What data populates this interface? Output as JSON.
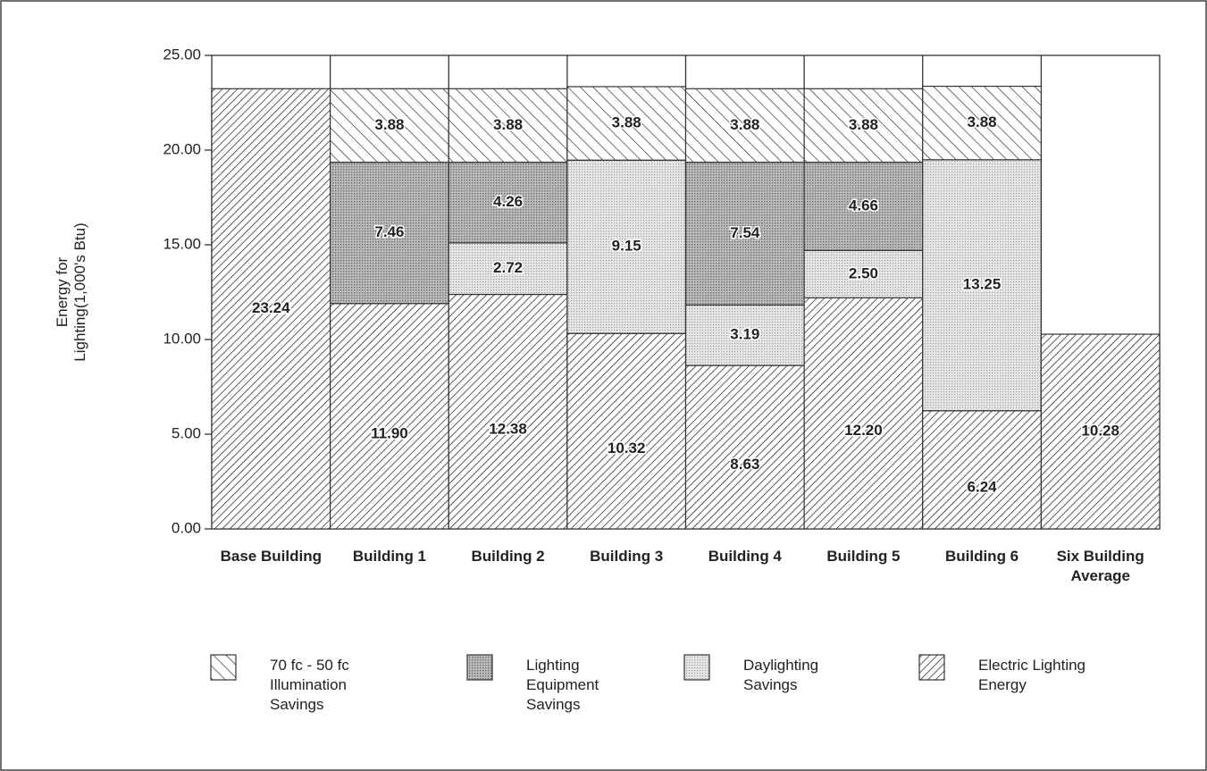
{
  "chart_data": {
    "type": "stacked-bar",
    "ylabel": "Energy for Lighting(1,000's Btu)",
    "categories": [
      "Base Building",
      "Building 1",
      "Building 2",
      "Building 3",
      "Building 4",
      "Building 5",
      "Building 6",
      "Six Building Average"
    ],
    "series": [
      {
        "name": "70 fc - 50 fc Illumination Savings",
        "color": "#333333",
        "pattern": "hatch-back",
        "values": [
          null,
          3.88,
          3.88,
          3.88,
          3.88,
          3.88,
          3.88,
          null
        ]
      },
      {
        "name": "Lighting Equipment Savings",
        "color": "#8a8a8a",
        "pattern": "dots-dark",
        "values": [
          null,
          7.46,
          4.26,
          null,
          7.54,
          4.66,
          null,
          null
        ]
      },
      {
        "name": "Daylighting Savings",
        "color": "#c4c4c4",
        "pattern": "dots-light",
        "values": [
          null,
          null,
          2.72,
          9.15,
          3.19,
          2.5,
          13.25,
          null
        ],
        "value_labels": [
          null,
          null,
          "2.72",
          "9.15",
          "3.19",
          "2.50",
          "13.25",
          null
        ]
      },
      {
        "name": "Electric Lighting Energy",
        "color": "#333333",
        "pattern": "hatch-fwd",
        "values": [
          23.24,
          11.9,
          12.38,
          10.32,
          8.63,
          12.2,
          6.24,
          10.28
        ],
        "value_labels": [
          "23.24",
          "11.90",
          "12.38",
          "10.32",
          "8.63",
          "12.20",
          "6.24",
          "10.28"
        ]
      }
    ],
    "ylim": [
      0,
      25
    ],
    "yticks": [
      {
        "value": 0,
        "label": "0.00"
      },
      {
        "value": 5,
        "label": "5.00"
      },
      {
        "value": 10,
        "label": "10.00"
      },
      {
        "value": 15,
        "label": "15.00"
      },
      {
        "value": 20,
        "label": "20.00"
      },
      {
        "value": 25,
        "label": "25.00"
      }
    ]
  }
}
